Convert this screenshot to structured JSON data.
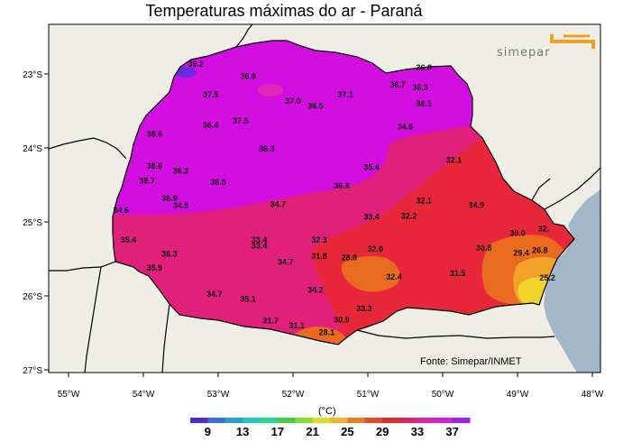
{
  "title": "Temperaturas máximas do ar - Paraná",
  "logo_text": "simepar",
  "source": "Fonte: Simepar/INMET",
  "unit": "(°C)",
  "lat_ticks": [
    "23°S",
    "24°S",
    "25°S",
    "26°S",
    "27°S"
  ],
  "lon_ticks": [
    "55°W",
    "54°W",
    "53°W",
    "52°W",
    "51°W",
    "50°W",
    "49°W",
    "48°W"
  ],
  "legend": {
    "labels": [
      "9",
      "13",
      "17",
      "21",
      "25",
      "29",
      "33",
      "37"
    ],
    "colors": [
      "#4b2bd6",
      "#3a6ee0",
      "#1fa3d8",
      "#1ec9c0",
      "#27d68e",
      "#3ecf4a",
      "#86dc2a",
      "#d8e02a",
      "#f0b42a",
      "#ee7a22",
      "#e84a26",
      "#e02a2a",
      "#e0206a",
      "#e01ea8",
      "#d21ee0",
      "#a21ef0"
    ]
  },
  "colors": {
    "ocean": "#a3b7c9",
    "land": "#efeee6",
    "magenta": "#d20ee0",
    "pink": "#e0207a",
    "red": "#e8283a",
    "orange": "#ea6a20",
    "amber": "#f0a22a",
    "yellow": "#f2d42a"
  },
  "stations": [
    {
      "v": "39.2",
      "lon": -53.3,
      "lat": -22.9
    },
    {
      "v": "36.8",
      "lon": -52.6,
      "lat": -23.07
    },
    {
      "v": "37.5",
      "lon": -53.1,
      "lat": -23.32
    },
    {
      "v": "37.0",
      "lon": -52.0,
      "lat": -23.4
    },
    {
      "v": "36.5",
      "lon": -51.7,
      "lat": -23.47
    },
    {
      "v": "37.1",
      "lon": -51.3,
      "lat": -23.32
    },
    {
      "v": "36.7",
      "lon": -50.6,
      "lat": -23.18
    },
    {
      "v": "36.3",
      "lon": -50.3,
      "lat": -23.22
    },
    {
      "v": "36.1",
      "lon": -50.25,
      "lat": -23.44
    },
    {
      "v": "36.8",
      "lon": -50.25,
      "lat": -22.95
    },
    {
      "v": "37.5",
      "lon": -52.7,
      "lat": -23.67
    },
    {
      "v": "36.4",
      "lon": -53.1,
      "lat": -23.73
    },
    {
      "v": "38.6",
      "lon": -53.85,
      "lat": -23.85
    },
    {
      "v": "34.6",
      "lon": -50.5,
      "lat": -23.75
    },
    {
      "v": "36.3",
      "lon": -52.35,
      "lat": -24.05
    },
    {
      "v": "38.6",
      "lon": -53.85,
      "lat": -24.28
    },
    {
      "v": "36.3",
      "lon": -53.5,
      "lat": -24.35
    },
    {
      "v": "35.4",
      "lon": -50.95,
      "lat": -24.3
    },
    {
      "v": "32.1",
      "lon": -49.85,
      "lat": -24.2
    },
    {
      "v": "38.7",
      "lon": -53.95,
      "lat": -24.48
    },
    {
      "v": "36.5",
      "lon": -53.0,
      "lat": -24.5
    },
    {
      "v": "36.8",
      "lon": -51.35,
      "lat": -24.55
    },
    {
      "v": "36.9",
      "lon": -53.65,
      "lat": -24.72
    },
    {
      "v": "34.5",
      "lon": -53.5,
      "lat": -24.82
    },
    {
      "v": "34.7",
      "lon": -52.2,
      "lat": -24.8
    },
    {
      "v": "32.1",
      "lon": -50.25,
      "lat": -24.75
    },
    {
      "v": "34.9",
      "lon": -49.55,
      "lat": -24.81
    },
    {
      "v": "34.6",
      "lon": -54.3,
      "lat": -24.88
    },
    {
      "v": "33.4",
      "lon": -50.95,
      "lat": -24.97
    },
    {
      "v": "32.2",
      "lon": -50.45,
      "lat": -24.96
    },
    {
      "v": "35.4",
      "lon": -54.2,
      "lat": -25.28
    },
    {
      "v": "33.4",
      "lon": -52.45,
      "lat": -25.28
    },
    {
      "v": "33.4",
      "lon": -52.45,
      "lat": -25.36
    },
    {
      "v": "32.3",
      "lon": -51.65,
      "lat": -25.28
    },
    {
      "v": "32.0",
      "lon": -50.9,
      "lat": -25.4
    },
    {
      "v": "30.0",
      "lon": -49.0,
      "lat": -25.19
    },
    {
      "v": "32.",
      "lon": -48.65,
      "lat": -25.13
    },
    {
      "v": "30.8",
      "lon": -49.45,
      "lat": -25.39
    },
    {
      "v": "29.4",
      "lon": -48.95,
      "lat": -25.46
    },
    {
      "v": "26.8",
      "lon": -48.7,
      "lat": -25.42
    },
    {
      "v": "36.3",
      "lon": -53.65,
      "lat": -25.47
    },
    {
      "v": "31.8",
      "lon": -51.65,
      "lat": -25.5
    },
    {
      "v": "28.8",
      "lon": -51.25,
      "lat": -25.52
    },
    {
      "v": "34.7",
      "lon": -52.1,
      "lat": -25.58
    },
    {
      "v": "35.9",
      "lon": -53.85,
      "lat": -25.66
    },
    {
      "v": "31.5",
      "lon": -49.8,
      "lat": -25.73
    },
    {
      "v": "32.4",
      "lon": -50.65,
      "lat": -25.78
    },
    {
      "v": "25.2",
      "lon": -48.6,
      "lat": -25.79
    },
    {
      "v": "34.2",
      "lon": -51.7,
      "lat": -25.96
    },
    {
      "v": "34.7",
      "lon": -53.05,
      "lat": -26.01
    },
    {
      "v": "35.1",
      "lon": -52.6,
      "lat": -26.08
    },
    {
      "v": "33.3",
      "lon": -51.05,
      "lat": -26.21
    },
    {
      "v": "31.7",
      "lon": -52.3,
      "lat": -26.37
    },
    {
      "v": "31.1",
      "lon": -51.95,
      "lat": -26.44
    },
    {
      "v": "30.9",
      "lon": -51.35,
      "lat": -26.36
    },
    {
      "v": "28.1",
      "lon": -51.55,
      "lat": -26.53
    }
  ]
}
